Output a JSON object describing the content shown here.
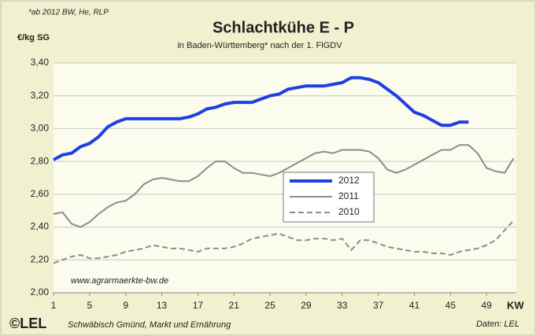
{
  "chart_data": {
    "type": "line",
    "title": "Schlachtkühe E - P",
    "subtitle": "in Baden-Württemberg* nach der 1. FlGDV",
    "note": "*ab 2012 BW, He, RLP",
    "y_label": "€/kg SG",
    "x_label": "KW",
    "website": "www.agrarmaerkte-bw.de",
    "logo": "©LEL",
    "footer": "Schwäbisch Gmünd, Markt und Ernährung",
    "source": "Daten: LEL",
    "x": [
      1,
      2,
      3,
      4,
      5,
      6,
      7,
      8,
      9,
      10,
      11,
      12,
      13,
      14,
      15,
      16,
      17,
      18,
      19,
      20,
      21,
      22,
      23,
      24,
      25,
      26,
      27,
      28,
      29,
      30,
      31,
      32,
      33,
      34,
      35,
      36,
      37,
      38,
      39,
      40,
      41,
      42,
      43,
      44,
      45,
      46,
      47,
      48,
      49,
      50,
      51,
      52
    ],
    "xlim": [
      1,
      52.3
    ],
    "xticks": [
      1,
      5,
      9,
      13,
      17,
      21,
      25,
      29,
      33,
      37,
      41,
      45,
      49
    ],
    "ylim": [
      2,
      3.4
    ],
    "yticks": [
      {
        "value": 2,
        "label": "2,00"
      },
      {
        "value": 2.2,
        "label": "2,20"
      },
      {
        "value": 2.4,
        "label": "2,40"
      },
      {
        "value": 2.6,
        "label": "2,60"
      },
      {
        "value": 2.8,
        "label": "2,80"
      },
      {
        "value": 3,
        "label": "3,00"
      },
      {
        "value": 3.2,
        "label": "3,20"
      },
      {
        "value": 3.4,
        "label": "3,40"
      }
    ],
    "grid": true,
    "series": [
      {
        "name": "2012",
        "color": "#1f3fe0",
        "style": "solid",
        "width": 4,
        "values": [
          2.81,
          2.84,
          2.85,
          2.89,
          2.91,
          2.95,
          3.01,
          3.04,
          3.06,
          3.06,
          3.06,
          3.06,
          3.06,
          3.06,
          3.06,
          3.07,
          3.09,
          3.12,
          3.13,
          3.15,
          3.16,
          3.16,
          3.16,
          3.18,
          3.2,
          3.21,
          3.24,
          3.25,
          3.26,
          3.26,
          3.26,
          3.27,
          3.28,
          3.31,
          3.31,
          3.3,
          3.28,
          3.24,
          3.2,
          3.15,
          3.1,
          3.08,
          3.05,
          3.02,
          3.02,
          3.04,
          3.04,
          null,
          null,
          null,
          null,
          null
        ]
      },
      {
        "name": "2011",
        "color": "#8c8c8c",
        "style": "solid",
        "width": 2,
        "values": [
          2.48,
          2.49,
          2.42,
          2.4,
          2.43,
          2.48,
          2.52,
          2.55,
          2.56,
          2.6,
          2.66,
          2.69,
          2.7,
          2.69,
          2.68,
          2.68,
          2.71,
          2.76,
          2.8,
          2.8,
          2.76,
          2.73,
          2.73,
          2.72,
          2.71,
          2.73,
          2.76,
          2.79,
          2.82,
          2.85,
          2.86,
          2.85,
          2.87,
          2.87,
          2.87,
          2.86,
          2.82,
          2.75,
          2.73,
          2.75,
          2.78,
          2.81,
          2.84,
          2.87,
          2.87,
          2.9,
          2.9,
          2.85,
          2.76,
          2.74,
          2.73,
          2.82
        ]
      },
      {
        "name": "2010",
        "color": "#8c8c8c",
        "style": "dashed",
        "width": 2,
        "values": [
          2.18,
          2.2,
          2.22,
          2.23,
          2.21,
          2.21,
          2.22,
          2.23,
          2.25,
          2.26,
          2.27,
          2.29,
          2.28,
          2.27,
          2.27,
          2.26,
          2.25,
          2.27,
          2.27,
          2.27,
          2.28,
          2.3,
          2.33,
          2.34,
          2.35,
          2.36,
          2.34,
          2.32,
          2.32,
          2.33,
          2.33,
          2.32,
          2.33,
          2.26,
          2.32,
          2.32,
          2.3,
          2.28,
          2.27,
          2.26,
          2.25,
          2.25,
          2.24,
          2.24,
          2.23,
          2.25,
          2.26,
          2.27,
          2.29,
          2.32,
          2.38,
          2.44
        ]
      }
    ]
  }
}
